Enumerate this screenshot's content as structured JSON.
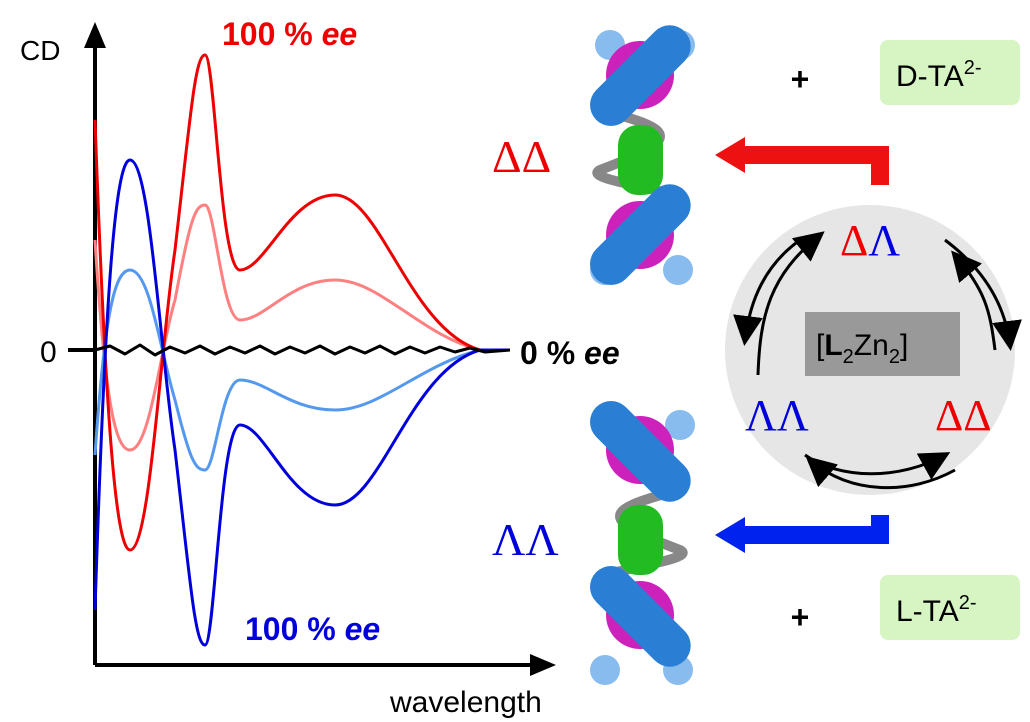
{
  "spectrum": {
    "y_label": "CD",
    "origin": "0",
    "x_label": "wavelength",
    "top_label": {
      "amount": "100 %",
      "unit": "ee"
    },
    "middle_label": {
      "amount": "0 %",
      "unit": "ee"
    },
    "bottom_label": {
      "amount": "100 %",
      "unit": "ee"
    }
  },
  "helicates": {
    "top": {
      "first": "Δ",
      "second": "Δ"
    },
    "bottom": {
      "first": "Λ",
      "second": "Λ"
    }
  },
  "guests": {
    "top": {
      "plus": "+",
      "name": "D-TA",
      "charge": "2-"
    },
    "bottom": {
      "plus": "+",
      "name": "L-TA",
      "charge": "2-"
    }
  },
  "cycle": {
    "top": {
      "first": "Δ",
      "second": "Λ"
    },
    "left": {
      "first": "Λ",
      "second": "Λ"
    },
    "right": {
      "first": "Δ",
      "second": "Δ"
    },
    "center": {
      "open": "[",
      "ligand": "L",
      "ligand_count": "2",
      "metal": "Zn",
      "metal_count": "2",
      "close": "]"
    }
  }
}
